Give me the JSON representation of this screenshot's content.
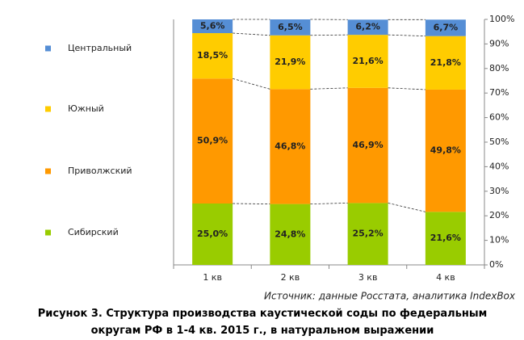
{
  "chart_data": {
    "type": "stacked_bar",
    "categories": [
      "1 кв",
      "2 кв",
      "3 кв",
      "4 кв"
    ],
    "series": [
      {
        "name": "Сибирский",
        "color": "#99cc00",
        "values": [
          25.0,
          24.8,
          25.2,
          21.6
        ],
        "value_labels": [
          "25,0%",
          "24,8%",
          "25,2%",
          "21,6%"
        ]
      },
      {
        "name": "Приволжский",
        "color": "#ff9900",
        "values": [
          50.9,
          46.8,
          46.9,
          49.8
        ],
        "value_labels": [
          "50,9%",
          "46,8%",
          "46,9%",
          "49,8%"
        ]
      },
      {
        "name": "Южный",
        "color": "#ffcc00",
        "values": [
          18.5,
          21.9,
          21.6,
          21.8
        ],
        "value_labels": [
          "18,5%",
          "21,9%",
          "21,6%",
          "21,8%"
        ]
      },
      {
        "name": "Центральный",
        "color": "#558ed5",
        "values": [
          5.6,
          6.5,
          6.2,
          6.7
        ],
        "value_labels": [
          "5,6%",
          "6,5%",
          "6,2%",
          "6,7%"
        ]
      }
    ],
    "ylim": [
      0,
      100
    ],
    "yticks": [
      {
        "value": 0,
        "label": "0%"
      },
      {
        "value": 10,
        "label": "10%"
      },
      {
        "value": 20,
        "label": "20%"
      },
      {
        "value": 30,
        "label": "30%"
      },
      {
        "value": 40,
        "label": "40%"
      },
      {
        "value": 50,
        "label": "50%"
      },
      {
        "value": 60,
        "label": "60%"
      },
      {
        "value": 70,
        "label": "70%"
      },
      {
        "value": 80,
        "label": "80%"
      },
      {
        "value": 90,
        "label": "90%"
      },
      {
        "value": 100,
        "label": "100%"
      }
    ],
    "source": "Источник: данные Росстата, аналитика IndexBox",
    "caption": "Рисунок 3. Структура производства каустической соды по федеральным округам РФ в 1-4 кв. 2015 г., в натуральном выражении"
  }
}
